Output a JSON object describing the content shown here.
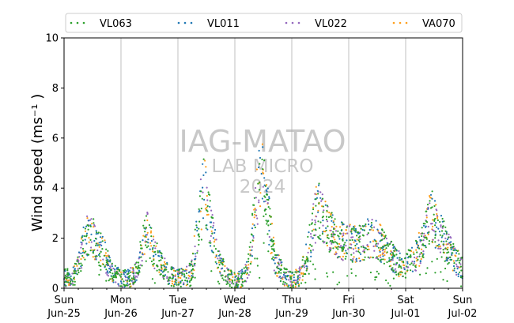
{
  "chart_data": {
    "type": "scatter",
    "title": "",
    "xlabel": "",
    "ylabel": "Wind speed (ms⁻¹ )",
    "ylim": [
      0,
      10
    ],
    "yticks": [
      "0",
      "2",
      "4",
      "6",
      "8",
      "10"
    ],
    "xlim": [
      "2023-06-25",
      "2023-07-02"
    ],
    "xticks": [
      {
        "day": "Sun",
        "date": "Jun-25"
      },
      {
        "day": "Mon",
        "date": "Jun-26"
      },
      {
        "day": "Tue",
        "date": "Jun-27"
      },
      {
        "day": "Wed",
        "date": "Jun-28"
      },
      {
        "day": "Thu",
        "date": "Jun-29"
      },
      {
        "day": "Fri",
        "date": "Jun-30"
      },
      {
        "day": "Sat",
        "date": "Jul-01"
      },
      {
        "day": "Sun",
        "date": "Jul-02"
      }
    ],
    "grid": "vertical at day ticks",
    "legend_placement": "top, outside plot",
    "watermark": [
      "IAG-MATAO",
      "LAB MICRO",
      "2024"
    ],
    "series": [
      {
        "name": "VL063",
        "color": "#2ca02c"
      },
      {
        "name": "VL011",
        "color": "#1f77b4"
      },
      {
        "name": "VL022",
        "color": "#9467bd"
      },
      {
        "name": "VA070",
        "color": "#ff9f1c"
      }
    ],
    "daily_profile": {
      "x_days": [
        0,
        0.15,
        0.25,
        0.35,
        0.45,
        0.55,
        0.7,
        0.85,
        1.0,
        1.15,
        1.25,
        1.35,
        1.45,
        1.55,
        1.7,
        1.85,
        2.0,
        2.15,
        2.25,
        2.35,
        2.45,
        2.55,
        2.7,
        2.85,
        3.0,
        3.15,
        3.25,
        3.35,
        3.45,
        3.55,
        3.7,
        3.85,
        4.0,
        4.15,
        4.25,
        4.35,
        4.45,
        4.55,
        4.7,
        4.85,
        5.0,
        5.15,
        5.25,
        5.35,
        5.45,
        5.55,
        5.7,
        5.85,
        6.0,
        6.15,
        6.25,
        6.35,
        6.45,
        6.55,
        6.7,
        6.85,
        7.0
      ],
      "wind_speed": [
        0.4,
        0.5,
        0.8,
        1.8,
        2.4,
        1.8,
        1.4,
        0.6,
        0.4,
        0.4,
        0.6,
        1.4,
        2.3,
        1.6,
        1.0,
        0.5,
        0.4,
        0.5,
        0.8,
        2.5,
        4.2,
        2.8,
        1.2,
        0.5,
        0.3,
        0.4,
        1.0,
        3.0,
        4.8,
        3.4,
        1.2,
        0.5,
        0.3,
        0.5,
        1.2,
        2.2,
        3.2,
        2.8,
        2.2,
        1.9,
        1.8,
        1.8,
        1.8,
        2.0,
        2.0,
        1.8,
        1.4,
        1.0,
        0.9,
        1.2,
        1.6,
        2.2,
        3.0,
        2.4,
        1.8,
        1.2,
        0.8
      ]
    }
  }
}
